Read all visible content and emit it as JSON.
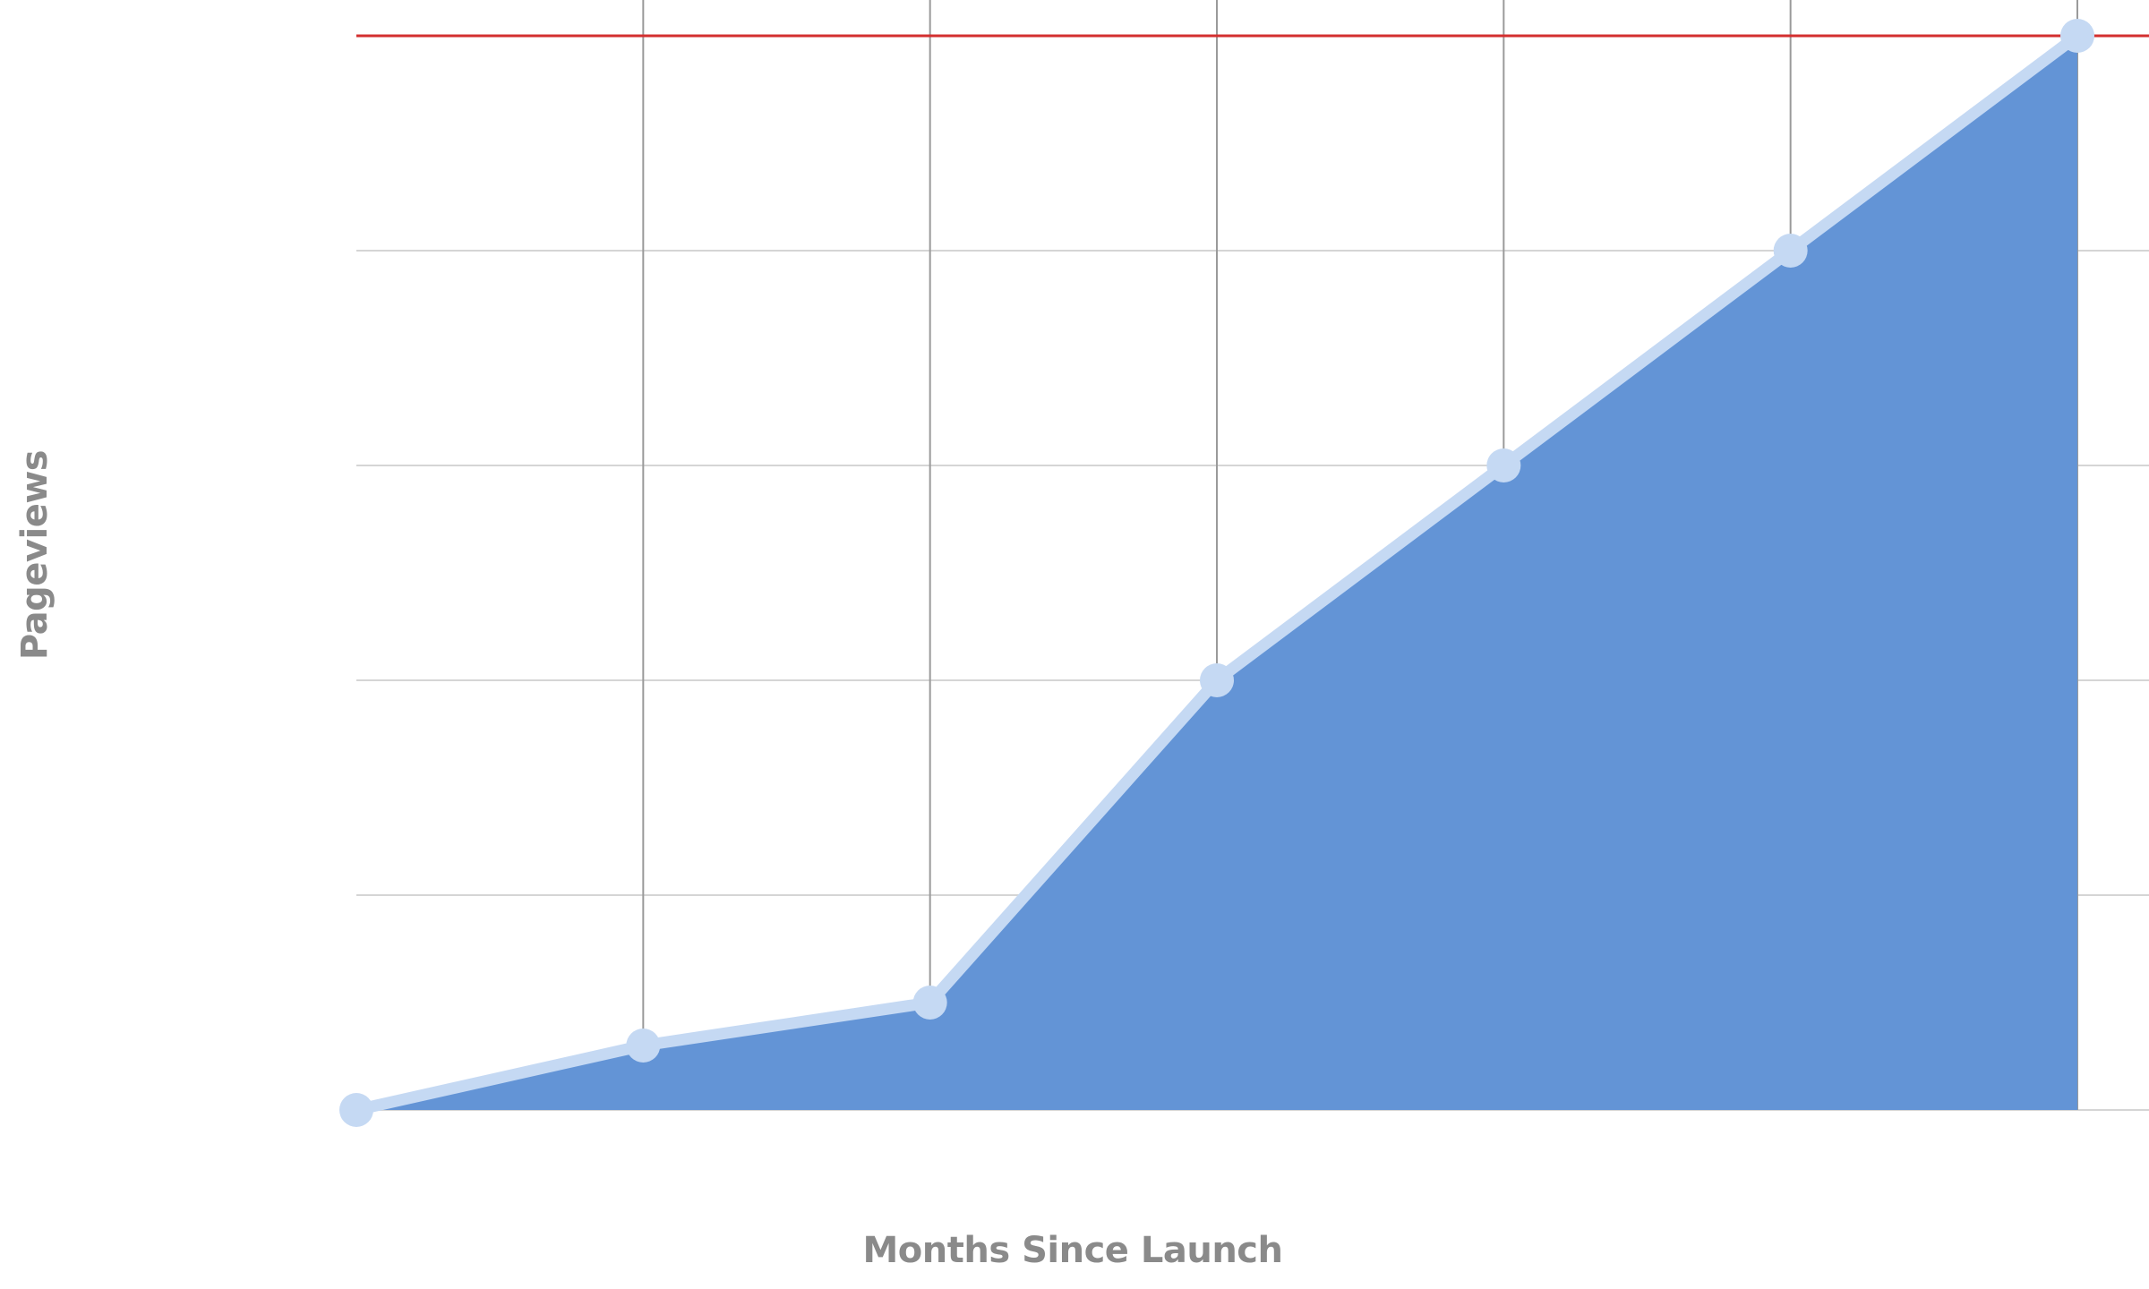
{
  "chart_data": {
    "type": "area",
    "title": "",
    "xlabel": "Months Since Launch",
    "ylabel": "Pageviews",
    "x": [
      0,
      1,
      2,
      3,
      4,
      5,
      6
    ],
    "series": [
      {
        "values": [
          0,
          0.3,
          0.5,
          2.0,
          3.0,
          4.0,
          5.0
        ]
      }
    ],
    "xlim": [
      0,
      6
    ],
    "ylim": [
      0,
      5
    ],
    "reference_line": {
      "y": 5.0,
      "color": "#d32f2f"
    },
    "grid": true,
    "colors": {
      "area_fill": "#6394d6",
      "line": "#c5d9f3",
      "marker": "#c5d9f3",
      "grid_horizontal": "#d5d5d5",
      "grid_vertical": "#9a9a9a",
      "axis_title": "#8a8a8a"
    }
  }
}
